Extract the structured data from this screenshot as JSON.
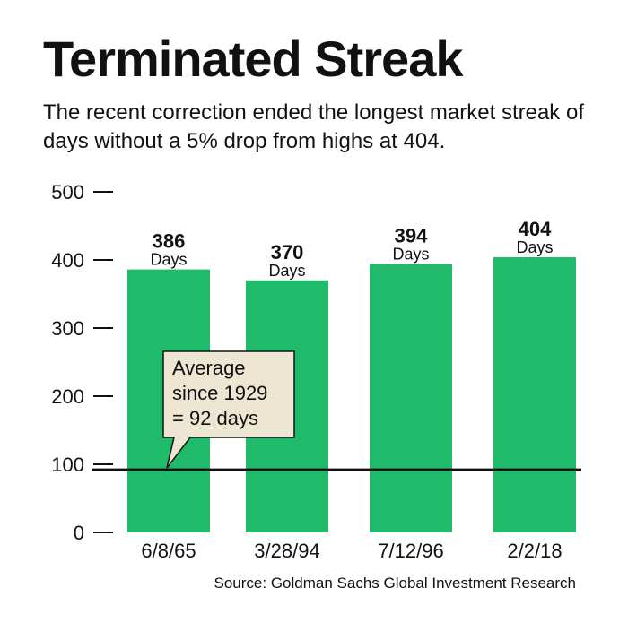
{
  "header": {
    "title": "Terminated Streak",
    "subtitle": "The recent correction ended the longest market streak of days without a 5% drop from highs at 404."
  },
  "source": "Source: Goldman Sachs Global Investment Research",
  "colors": {
    "bar": "#1fba6a",
    "callout_bg": "#ede6d3",
    "line": "#111111"
  },
  "chart_data": {
    "type": "bar",
    "title": "Terminated Streak",
    "categories": [
      "6/8/65",
      "3/28/94",
      "7/12/96",
      "2/2/18"
    ],
    "values": [
      386,
      370,
      394,
      404
    ],
    "value_labels": [
      "386",
      "370",
      "394",
      "404"
    ],
    "unit_label": "Days",
    "ylim": [
      0,
      500
    ],
    "yticks": [
      0,
      100,
      200,
      300,
      400,
      500
    ],
    "grid": false,
    "reference_line": {
      "value": 92,
      "label_lines": [
        "Average",
        "since 1929",
        "= 92 days"
      ]
    }
  }
}
